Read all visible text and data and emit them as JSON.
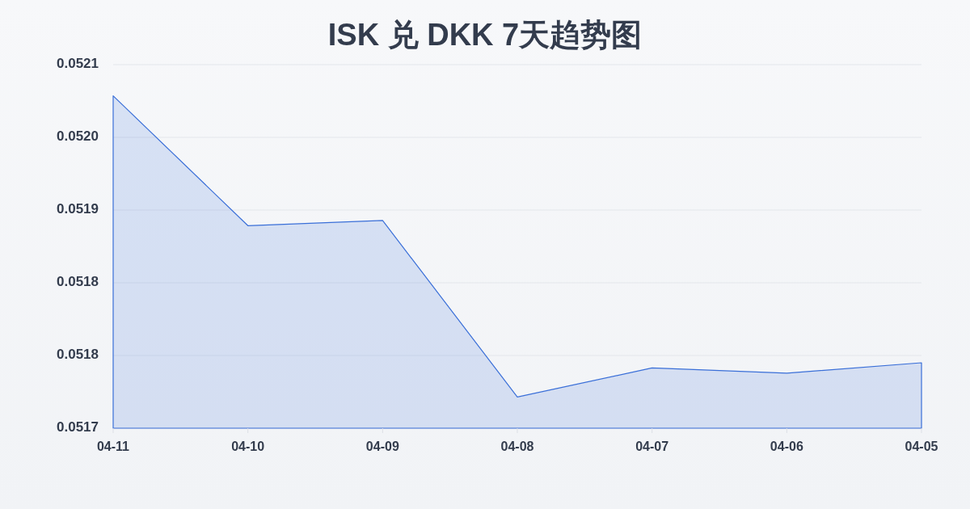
{
  "chart_data": {
    "type": "area",
    "title": "ISK 兑 DKK 7天趋势图",
    "categories": [
      "04-11",
      "04-10",
      "04-09",
      "04-08",
      "04-07",
      "04-06",
      "04-05"
    ],
    "values": [
      0.05202,
      0.051895,
      0.0519,
      0.05173,
      0.051758,
      0.051753,
      0.051763
    ],
    "color": "#3a6fd8",
    "ylim": [
      0.0517,
      0.05205
    ],
    "yticks": [
      {
        "value": 0.0517,
        "label": "0.0517"
      },
      {
        "value": 0.05177,
        "label": "0.0518"
      },
      {
        "value": 0.05184,
        "label": "0.0518"
      },
      {
        "value": 0.05191,
        "label": "0.0519"
      },
      {
        "value": 0.05198,
        "label": "0.0520"
      },
      {
        "value": 0.05205,
        "label": "0.0521"
      }
    ],
    "grid": "y"
  }
}
